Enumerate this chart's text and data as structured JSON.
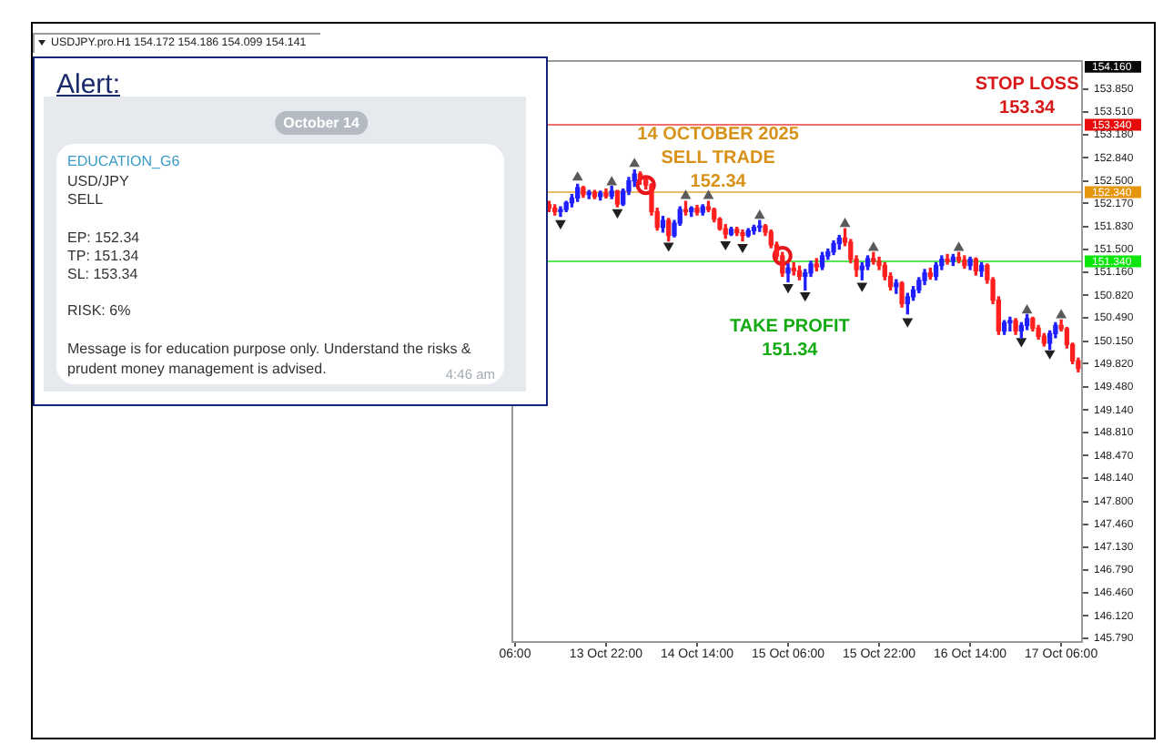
{
  "chart_data": [
    {
      "type": "candlestick",
      "categories": [
        "06:00",
        null,
        null,
        null,
        null,
        null,
        null,
        null,
        null,
        null,
        null,
        null,
        null,
        null,
        null,
        null,
        "13 Oct 22:00",
        null,
        null,
        null,
        null,
        null,
        null,
        null,
        null,
        null,
        null,
        null,
        null,
        null,
        null,
        null,
        "14 Oct 14:00",
        null,
        null,
        null,
        null,
        null,
        null,
        null,
        null,
        null,
        null,
        null,
        null,
        null,
        null,
        null,
        "15 Oct 06:00",
        null,
        null,
        null,
        null,
        null,
        null,
        null,
        null,
        null,
        null,
        null,
        null,
        null,
        null,
        null,
        "15 Oct 22:00",
        null,
        null,
        null,
        null,
        null,
        null,
        null,
        null,
        null,
        null,
        null,
        null,
        null,
        null,
        null,
        "16 Oct 14:00",
        null,
        null,
        null,
        null,
        null,
        null,
        null,
        null,
        null,
        null,
        null,
        null,
        null,
        null,
        null,
        "17 Oct 06:00",
        null,
        null,
        null
      ],
      "ohlc": [
        null,
        null,
        null,
        null,
        null,
        null,
        [
          152.15,
          152.2,
          152.05,
          152.1
        ],
        [
          152.1,
          152.15,
          152.0,
          152.05
        ],
        [
          152.05,
          152.12,
          151.98,
          152.08
        ],
        [
          152.08,
          152.2,
          152.05,
          152.18
        ],
        [
          152.18,
          152.3,
          152.12,
          152.25
        ],
        [
          152.25,
          152.45,
          152.2,
          152.4
        ],
        [
          152.4,
          152.42,
          152.26,
          152.3
        ],
        [
          152.3,
          152.36,
          152.24,
          152.33
        ],
        [
          152.33,
          152.36,
          152.24,
          152.27
        ],
        [
          152.27,
          152.35,
          152.22,
          152.32
        ],
        [
          152.32,
          152.38,
          152.25,
          152.28
        ],
        [
          152.28,
          152.42,
          152.24,
          152.35
        ],
        [
          152.35,
          152.36,
          152.12,
          152.16
        ],
        [
          152.16,
          152.38,
          152.14,
          152.35
        ],
        [
          152.35,
          152.55,
          152.3,
          152.5
        ],
        [
          152.5,
          152.66,
          152.42,
          152.6
        ],
        [
          152.6,
          152.63,
          152.45,
          152.52
        ],
        [
          152.52,
          152.55,
          152.38,
          152.44
        ],
        [
          152.44,
          152.46,
          152.0,
          152.05
        ],
        [
          152.05,
          152.1,
          151.78,
          151.82
        ],
        [
          151.82,
          151.98,
          151.75,
          151.92
        ],
        [
          151.92,
          151.95,
          151.62,
          151.7
        ],
        [
          151.7,
          151.92,
          151.68,
          151.88
        ],
        [
          151.88,
          152.12,
          151.85,
          152.08
        ],
        [
          152.08,
          152.2,
          152.0,
          152.05
        ],
        [
          152.05,
          152.12,
          151.98,
          152.1
        ],
        [
          152.1,
          152.14,
          152.0,
          152.04
        ],
        [
          152.04,
          152.15,
          152.0,
          152.12
        ],
        [
          152.12,
          152.2,
          152.05,
          152.08
        ],
        [
          152.08,
          152.1,
          151.9,
          151.94
        ],
        [
          151.94,
          151.96,
          151.78,
          151.8
        ],
        [
          151.8,
          151.86,
          151.66,
          151.72
        ],
        [
          151.72,
          151.82,
          151.7,
          151.79
        ],
        [
          151.79,
          151.82,
          151.7,
          151.74
        ],
        [
          151.74,
          151.78,
          151.62,
          151.7
        ],
        [
          151.7,
          151.8,
          151.68,
          151.77
        ],
        [
          151.77,
          151.85,
          151.72,
          151.82
        ],
        [
          151.82,
          151.92,
          151.76,
          151.84
        ],
        [
          151.84,
          151.86,
          151.7,
          151.75
        ],
        [
          151.75,
          151.78,
          151.52,
          151.56
        ],
        [
          151.56,
          151.6,
          151.35,
          151.4
        ],
        [
          151.4,
          151.45,
          151.1,
          151.15
        ],
        [
          151.15,
          151.28,
          151.02,
          151.22
        ],
        [
          151.22,
          151.3,
          151.12,
          151.18
        ],
        [
          151.18,
          151.25,
          151.05,
          151.1
        ],
        [
          151.1,
          151.2,
          150.9,
          151.15
        ],
        [
          151.15,
          151.32,
          151.1,
          151.28
        ],
        [
          151.28,
          151.36,
          151.18,
          151.24
        ],
        [
          151.24,
          151.45,
          151.2,
          151.4
        ],
        [
          151.4,
          151.5,
          151.35,
          151.46
        ],
        [
          151.46,
          151.62,
          151.42,
          151.58
        ],
        [
          151.58,
          151.7,
          151.5,
          151.66
        ],
        [
          151.66,
          151.8,
          151.55,
          151.6
        ],
        [
          151.6,
          151.64,
          151.3,
          151.35
        ],
        [
          151.35,
          151.4,
          151.1,
          151.2
        ],
        [
          151.2,
          151.3,
          151.05,
          151.25
        ],
        [
          151.25,
          151.4,
          151.2,
          151.36
        ],
        [
          151.36,
          151.45,
          151.28,
          151.32
        ],
        [
          151.32,
          151.38,
          151.2,
          151.26
        ],
        [
          151.26,
          151.3,
          151.05,
          151.1
        ],
        [
          151.1,
          151.15,
          150.9,
          150.95
        ],
        [
          150.95,
          151.05,
          150.85,
          151.0
        ],
        [
          151.0,
          151.02,
          150.65,
          150.7
        ],
        [
          150.7,
          150.85,
          150.55,
          150.8
        ],
        [
          150.8,
          150.95,
          150.75,
          150.9
        ],
        [
          150.9,
          151.08,
          150.86,
          151.04
        ],
        [
          151.04,
          151.2,
          150.98,
          151.15
        ],
        [
          151.15,
          151.22,
          151.06,
          151.1
        ],
        [
          151.1,
          151.3,
          151.05,
          151.26
        ],
        [
          151.26,
          151.4,
          151.2,
          151.35
        ],
        [
          151.35,
          151.42,
          151.28,
          151.32
        ],
        [
          151.32,
          151.42,
          151.26,
          151.38
        ],
        [
          151.38,
          151.45,
          151.3,
          151.34
        ],
        [
          151.34,
          151.4,
          151.22,
          151.26
        ],
        [
          151.26,
          151.38,
          151.2,
          151.35
        ],
        [
          151.35,
          151.37,
          151.12,
          151.18
        ],
        [
          151.18,
          151.3,
          151.1,
          151.26
        ],
        [
          151.26,
          151.28,
          151.0,
          151.05
        ],
        [
          151.05,
          151.08,
          150.7,
          150.75
        ],
        [
          150.75,
          150.8,
          150.25,
          150.3
        ],
        [
          150.3,
          150.45,
          150.25,
          150.42
        ],
        [
          150.42,
          150.5,
          150.3,
          150.45
        ],
        [
          150.45,
          150.48,
          150.25,
          150.3
        ],
        [
          150.3,
          150.42,
          150.2,
          150.38
        ],
        [
          150.38,
          150.54,
          150.32,
          150.48
        ],
        [
          150.48,
          150.5,
          150.3,
          150.34
        ],
        [
          150.34,
          150.38,
          150.18,
          150.22
        ],
        [
          150.22,
          150.26,
          150.08,
          150.12
        ],
        [
          150.12,
          150.3,
          150.03,
          150.26
        ],
        [
          150.26,
          150.42,
          150.2,
          150.38
        ],
        [
          150.38,
          150.46,
          150.3,
          150.33
        ],
        [
          150.33,
          150.35,
          150.05,
          150.1
        ],
        [
          150.1,
          150.12,
          149.82,
          149.86
        ],
        [
          149.86,
          149.9,
          149.7,
          149.75
        ]
      ],
      "colors": [
        null,
        null,
        null,
        null,
        null,
        null,
        "#ff1f1f",
        "#ff1f1f",
        "#1f1fff",
        "#1f1fff",
        "#1f1fff",
        "#1f1fff",
        "#ff1f1f",
        "#1f1fff",
        "#ff1f1f",
        "#1f1fff",
        "#ff1f1f",
        "#1f1fff",
        "#ff1f1f",
        "#1f1fff",
        "#1f1fff",
        "#1f1fff",
        "#ff1f1f",
        "#ff1f1f",
        "#ff1f1f",
        "#ff1f1f",
        "#1f1fff",
        "#ff1f1f",
        "#1f1fff",
        "#1f1fff",
        "#ff1f1f",
        "#1f1fff",
        "#ff1f1f",
        "#1f1fff",
        "#ff1f1f",
        "#ff1f1f",
        "#ff1f1f",
        "#ff1f1f",
        "#1f1fff",
        "#ff1f1f",
        "#ff1f1f",
        "#1f1fff",
        "#1f1fff",
        "#1f1fff",
        "#ff1f1f",
        "#ff1f1f",
        "#ff1f1f",
        "#ff1f1f",
        "#1f1fff",
        "#ff1f1f",
        "#ff1f1f",
        "#1f1fff",
        "#1f1fff",
        "#ff1f1f",
        "#1f1fff",
        "#1f1fff",
        "#1f1fff",
        "#1f1fff",
        "#ff1f1f",
        "#ff1f1f",
        "#ff1f1f",
        "#1f1fff",
        "#1f1fff",
        "#ff1f1f",
        "#ff1f1f",
        "#ff1f1f",
        "#ff1f1f",
        "#1f1fff",
        "#ff1f1f",
        "#1f1fff",
        "#1f1fff",
        "#1f1fff",
        "#1f1fff",
        "#ff1f1f",
        "#1f1fff",
        "#1f1fff",
        "#ff1f1f",
        "#1f1fff",
        "#ff1f1f",
        "#ff1f1f",
        "#1f1fff",
        "#ff1f1f",
        "#1f1fff",
        "#ff1f1f",
        "#ff1f1f",
        "#ff1f1f",
        "#1f1fff",
        "#1f1fff",
        "#ff1f1f",
        "#1f1fff",
        "#1f1fff",
        "#ff1f1f",
        "#ff1f1f",
        "#ff1f1f",
        "#1f1fff",
        "#1f1fff",
        "#ff1f1f",
        "#ff1f1f",
        "#ff1f1f",
        "#ff1f1f"
      ],
      "series": [
        {
          "type": "scatter",
          "color": "#e8141b",
          "marker": "circle",
          "values": [
            null,
            null,
            null,
            null,
            null,
            null,
            null,
            null,
            null,
            null,
            null,
            null,
            null,
            null,
            null,
            null,
            null,
            null,
            null,
            null,
            null,
            null,
            null,
            152.44,
            null,
            null,
            null,
            null,
            null,
            null,
            null,
            null,
            null,
            null,
            null,
            null,
            null,
            null,
            null,
            null,
            null,
            null,
            null,
            null,
            null,
            null,
            null,
            151.4,
            null,
            null,
            null,
            null,
            null,
            null,
            null,
            null,
            null,
            null,
            null,
            null,
            null,
            null,
            null,
            null,
            null,
            null,
            null,
            null,
            null,
            null,
            null,
            null,
            null,
            null,
            null,
            null,
            null,
            null,
            null,
            null,
            null,
            null,
            null,
            null,
            null,
            null,
            null,
            null,
            null,
            null,
            null,
            null,
            null,
            null,
            null,
            null,
            null,
            null,
            null,
            null
          ]
        },
        {
          "type": "scatter",
          "color": "#5a5a5a",
          "marker": "triangle",
          "values": [
            null,
            null,
            null,
            null,
            null,
            null,
            null,
            null,
            null,
            null,
            null,
            152.55,
            null,
            null,
            null,
            null,
            null,
            152.48,
            null,
            null,
            null,
            152.75,
            null,
            null,
            null,
            null,
            null,
            null,
            null,
            null,
            152.28,
            null,
            null,
            null,
            152.28,
            null,
            null,
            null,
            null,
            null,
            null,
            null,
            null,
            151.99,
            null,
            null,
            null,
            null,
            null,
            null,
            null,
            null,
            null,
            null,
            null,
            null,
            null,
            null,
            151.87,
            null,
            null,
            null,
            null,
            151.52,
            null,
            null,
            null,
            null,
            null,
            null,
            null,
            null,
            null,
            null,
            null,
            null,
            null,
            null,
            151.52,
            null,
            null,
            null,
            null,
            null,
            null,
            null,
            null,
            null,
            null,
            null,
            150.6,
            null,
            null,
            null,
            null,
            null,
            150.53,
            null,
            null,
            null
          ]
        },
        {
          "type": "scatter",
          "color": "#202020",
          "marker": "triangle",
          "values": [
            null,
            null,
            null,
            null,
            null,
            null,
            null,
            null,
            151.88,
            null,
            null,
            null,
            null,
            null,
            null,
            null,
            null,
            null,
            152.04,
            null,
            null,
            null,
            null,
            null,
            null,
            null,
            null,
            151.55,
            null,
            null,
            null,
            null,
            null,
            null,
            null,
            null,
            null,
            151.57,
            null,
            null,
            151.53,
            null,
            null,
            null,
            null,
            null,
            null,
            null,
            150.94,
            null,
            null,
            150.82,
            null,
            null,
            null,
            null,
            null,
            null,
            null,
            null,
            null,
            150.96,
            null,
            null,
            null,
            null,
            null,
            null,
            null,
            150.44,
            null,
            null,
            null,
            null,
            null,
            null,
            null,
            null,
            null,
            null,
            null,
            null,
            null,
            null,
            null,
            null,
            null,
            null,
            null,
            150.15,
            null,
            null,
            null,
            null,
            149.97,
            null,
            null,
            null,
            null,
            null
          ]
        }
      ],
      "ylim": [
        145.75,
        154.28
      ],
      "yticks": [
        {
          "value": 153.85,
          "label": "153.850"
        },
        {
          "value": 153.51,
          "label": "153.510"
        },
        {
          "value": 153.18,
          "label": "153.180"
        },
        {
          "value": 152.84,
          "label": "152.840"
        },
        {
          "value": 152.5,
          "label": "152.500"
        },
        {
          "value": 152.17,
          "label": "152.170"
        },
        {
          "value": 151.83,
          "label": "151.830"
        },
        {
          "value": 151.5,
          "label": "151.500"
        },
        {
          "value": 151.16,
          "label": "151.160"
        },
        {
          "value": 150.82,
          "label": "150.820"
        },
        {
          "value": 150.49,
          "label": "150.490"
        },
        {
          "value": 150.15,
          "label": "150.150"
        },
        {
          "value": 149.82,
          "label": "149.820"
        },
        {
          "value": 149.48,
          "label": "149.480"
        },
        {
          "value": 149.14,
          "label": "149.140"
        },
        {
          "value": 148.81,
          "label": "148.810"
        },
        {
          "value": 148.47,
          "label": "148.470"
        },
        {
          "value": 148.14,
          "label": "148.140"
        },
        {
          "value": 147.8,
          "label": "147.800"
        },
        {
          "value": 147.46,
          "label": "147.460"
        },
        {
          "value": 147.13,
          "label": "147.130"
        },
        {
          "value": 146.79,
          "label": "146.790"
        },
        {
          "value": 146.46,
          "label": "146.460"
        },
        {
          "value": 146.12,
          "label": "146.120"
        },
        {
          "value": 145.79,
          "label": "145.790"
        }
      ],
      "ref_lines": [
        {
          "axis": "y",
          "value": 153.34,
          "label": "153.340",
          "color": "#f07070"
        },
        {
          "axis": "y",
          "value": 152.34,
          "label": "152.340",
          "color": "#ecbc68"
        },
        {
          "axis": "y",
          "value": 151.34,
          "label": "151.340",
          "color": "#55e855"
        }
      ],
      "annotations": [
        {
          "text": "STOP LOSS\n153.34",
          "y": 153.34
        },
        {
          "text": "14 OCTOBER 2025\nSELL TRADE\n152.34",
          "y": 152.34
        },
        "TAKE PROFIT\n151.34",
        "154.160"
      ]
    },
    {
      "type": "other",
      "title": "Alert:",
      "annotations": [
        "USDJPY.pro.H1  154.172 154.186 154.099 154.141",
        "October 14",
        "EDUCATION_G6",
        "USD/JPY",
        "SELL",
        "EP: 152.34",
        "TP: 151.34",
        "SL: 153.34",
        "RISK: 6%",
        "Message is for education purpose only. Understand the risks & prudent money management is advised.",
        "4:46 am"
      ]
    }
  ]
}
